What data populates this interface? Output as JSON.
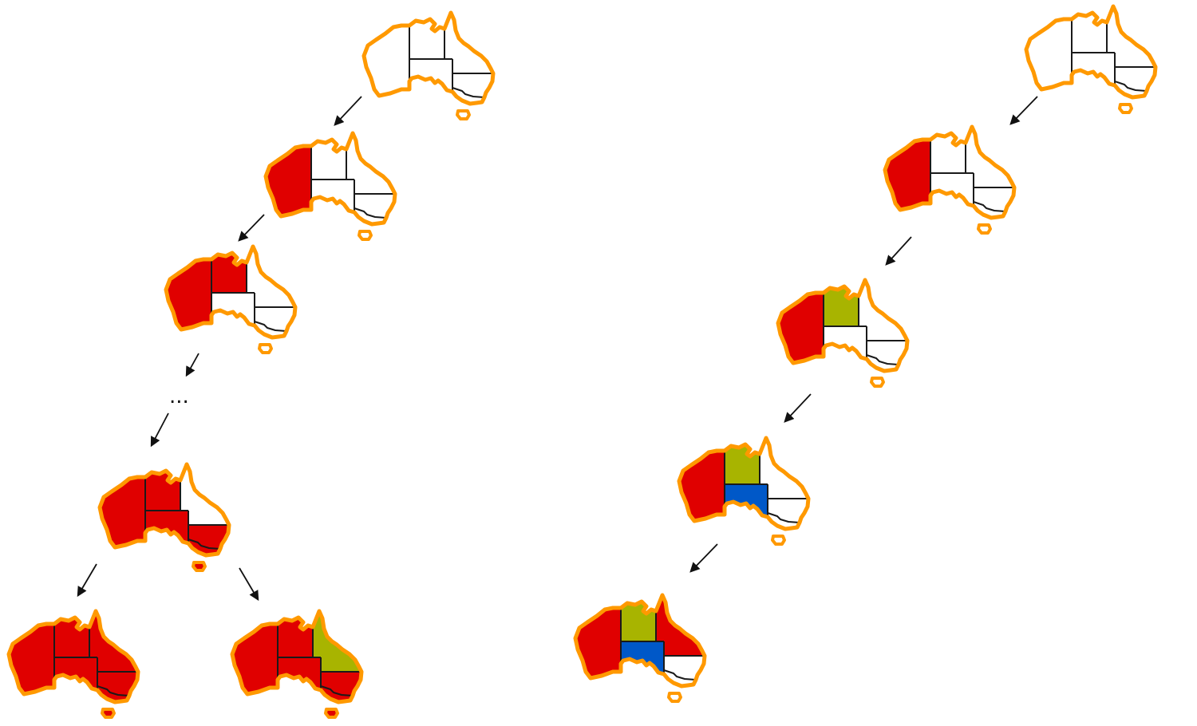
{
  "colors": {
    "outline": "#ff9900",
    "border": "#1a1a1a",
    "empty": "#ffffff",
    "red": "#e00000",
    "green": "#a8b400",
    "blue": "#0058c8"
  },
  "regions": [
    "WA",
    "NT",
    "SA",
    "QLD",
    "NSW",
    "VIC",
    "TAS"
  ],
  "ellipsis": "...",
  "maps": [
    {
      "name": "map-left-1",
      "fill": {}
    },
    {
      "name": "map-left-2",
      "fill": {
        "WA": "red"
      }
    },
    {
      "name": "map-left-3",
      "fill": {
        "WA": "red",
        "NT": "red"
      }
    },
    {
      "name": "map-left-4",
      "fill": {
        "WA": "red",
        "NT": "red",
        "SA": "red",
        "NSW": "red",
        "VIC": "red",
        "TAS": "red"
      }
    },
    {
      "name": "map-left-5",
      "fill": {
        "WA": "red",
        "NT": "red",
        "SA": "red",
        "QLD": "red",
        "NSW": "red",
        "VIC": "red",
        "TAS": "red"
      }
    },
    {
      "name": "map-left-6",
      "fill": {
        "WA": "red",
        "NT": "red",
        "SA": "red",
        "QLD": "green",
        "NSW": "red",
        "VIC": "red",
        "TAS": "red"
      }
    },
    {
      "name": "map-right-1",
      "fill": {}
    },
    {
      "name": "map-right-2",
      "fill": {
        "WA": "red"
      }
    },
    {
      "name": "map-right-3",
      "fill": {
        "WA": "red",
        "NT": "green"
      }
    },
    {
      "name": "map-right-4",
      "fill": {
        "WA": "red",
        "NT": "green",
        "SA": "blue"
      }
    },
    {
      "name": "map-right-5",
      "fill": {
        "WA": "red",
        "NT": "green",
        "SA": "blue",
        "QLD": "red"
      }
    }
  ]
}
